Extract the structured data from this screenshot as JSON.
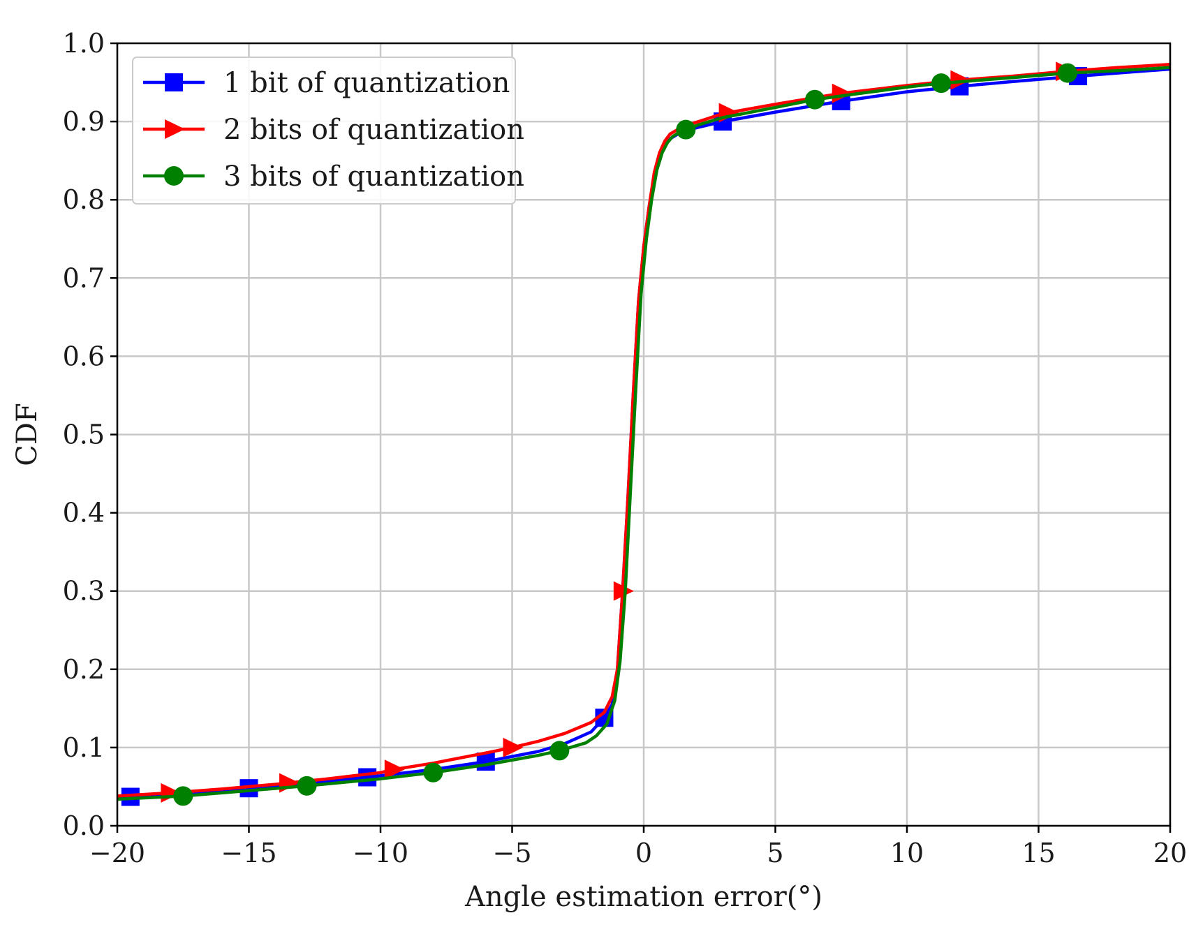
{
  "chart_data": {
    "type": "line",
    "xlabel": "Angle estimation error(°)",
    "ylabel": "CDF",
    "xlim": [
      -20,
      20
    ],
    "ylim": [
      0.0,
      1.0
    ],
    "xticks": [
      -20,
      -15,
      -10,
      -5,
      0,
      5,
      10,
      15,
      20
    ],
    "xtick_labels": [
      "−20",
      "−15",
      "−10",
      "−5",
      "0",
      "5",
      "10",
      "15",
      "20"
    ],
    "yticks": [
      0.0,
      0.1,
      0.2,
      0.3,
      0.4,
      0.5,
      0.6,
      0.7,
      0.8,
      0.9,
      1.0
    ],
    "ytick_labels": [
      "0.0",
      "0.1",
      "0.2",
      "0.3",
      "0.4",
      "0.5",
      "0.6",
      "0.7",
      "0.8",
      "0.9",
      "1.0"
    ],
    "grid": true,
    "legend_position": "top-left",
    "series": [
      {
        "name": "1 bit of quantization",
        "color": "#0000ff",
        "marker": "square",
        "x": [
          -20,
          -19.5,
          -17.5,
          -15,
          -12.5,
          -10.5,
          -8,
          -6,
          -4,
          -3,
          -2,
          -1.5,
          -1.2,
          -1.0,
          -0.8,
          -0.6,
          -0.4,
          -0.2,
          0.0,
          0.2,
          0.4,
          0.6,
          0.8,
          1.0,
          1.3,
          1.6,
          2,
          3,
          5,
          7.5,
          10,
          12,
          14,
          16.5,
          18,
          20
        ],
        "y": [
          0.035,
          0.037,
          0.042,
          0.048,
          0.055,
          0.062,
          0.072,
          0.082,
          0.095,
          0.105,
          0.12,
          0.138,
          0.155,
          0.2,
          0.3,
          0.42,
          0.55,
          0.67,
          0.74,
          0.79,
          0.83,
          0.855,
          0.87,
          0.878,
          0.884,
          0.888,
          0.892,
          0.9,
          0.912,
          0.926,
          0.938,
          0.945,
          0.951,
          0.958,
          0.962,
          0.967
        ],
        "marker_x": [
          -19.5,
          -15,
          -10.5,
          -6,
          -1.5,
          3,
          7.5,
          12,
          16.5
        ]
      },
      {
        "name": "2 bits of quantization",
        "color": "#ff0000",
        "marker": "triangle-right",
        "x": [
          -20,
          -18,
          -16,
          -14,
          -12,
          -10,
          -9.5,
          -8,
          -6,
          -5,
          -4,
          -3,
          -2,
          -1.5,
          -1.2,
          -1.0,
          -0.8,
          -0.6,
          -0.4,
          -0.2,
          0.0,
          0.2,
          0.4,
          0.6,
          0.8,
          1.0,
          1.3,
          1.6,
          2,
          3,
          5,
          7.5,
          10,
          12,
          14,
          16,
          18,
          20
        ],
        "y": [
          0.038,
          0.042,
          0.047,
          0.053,
          0.06,
          0.068,
          0.072,
          0.08,
          0.093,
          0.1,
          0.108,
          0.118,
          0.132,
          0.145,
          0.165,
          0.2,
          0.3,
          0.42,
          0.55,
          0.67,
          0.74,
          0.79,
          0.835,
          0.86,
          0.875,
          0.884,
          0.89,
          0.895,
          0.899,
          0.91,
          0.922,
          0.936,
          0.946,
          0.953,
          0.958,
          0.964,
          0.969,
          0.973
        ],
        "marker_x": [
          -18,
          -13.5,
          -9.5,
          -5,
          -0.8,
          3.2,
          7.5,
          12,
          16
        ]
      },
      {
        "name": "3 bits of quantization",
        "color": "#008000",
        "marker": "circle",
        "x": [
          -20,
          -17.5,
          -15,
          -12.8,
          -10,
          -8,
          -6,
          -4,
          -3.2,
          -2.2,
          -1.8,
          -1.4,
          -1.1,
          -0.9,
          -0.7,
          -0.5,
          -0.3,
          -0.1,
          0.1,
          0.3,
          0.5,
          0.7,
          0.9,
          1.1,
          1.4,
          1.7,
          2.1,
          3,
          5,
          6.5,
          8,
          10,
          11.3,
          14,
          16.1,
          18,
          20
        ],
        "y": [
          0.034,
          0.038,
          0.045,
          0.051,
          0.06,
          0.068,
          0.078,
          0.09,
          0.096,
          0.106,
          0.115,
          0.13,
          0.16,
          0.21,
          0.3,
          0.43,
          0.56,
          0.68,
          0.75,
          0.8,
          0.838,
          0.86,
          0.873,
          0.881,
          0.887,
          0.891,
          0.896,
          0.905,
          0.918,
          0.928,
          0.935,
          0.944,
          0.949,
          0.956,
          0.962,
          0.965,
          0.969
        ],
        "marker_x": [
          -17.5,
          -12.8,
          -8,
          -3.2,
          1.6,
          6.5,
          11.3,
          16.1
        ]
      }
    ]
  }
}
